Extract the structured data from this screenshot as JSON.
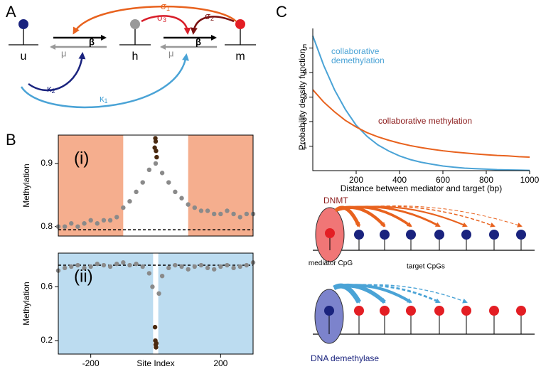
{
  "panel_labels": [
    "A",
    "B",
    "C"
  ],
  "diagram_a": {
    "states": [
      "u",
      "h",
      "m"
    ],
    "forward": [
      "β",
      "β"
    ],
    "backward": [
      "μ",
      "μ"
    ],
    "rates": [
      {
        "symbol": "σ",
        "sub": "1"
      },
      {
        "symbol": "σ",
        "sub": "2"
      },
      {
        "symbol": "σ",
        "sub": "3"
      },
      {
        "symbol": "κ",
        "sub": "1"
      },
      {
        "symbol": "κ",
        "sub": "2"
      }
    ]
  },
  "chart_data": [
    {
      "type": "scatter",
      "label": "(i)",
      "ylabel": "Methylation",
      "xlim": [
        -300,
        300
      ],
      "ylim": [
        0.785,
        0.945
      ],
      "yticks": [
        0.8,
        0.9
      ],
      "shaded": [
        [
          -300,
          -100
        ],
        [
          100,
          300
        ]
      ],
      "shade_color": "#f5ae8e",
      "reference_line": 0.795,
      "series": [
        {
          "color": "#8a8a8a",
          "x": [
            -300,
            -280,
            -260,
            -240,
            -220,
            -200,
            -180,
            -160,
            -140,
            -120,
            -100,
            -80,
            -60,
            -40,
            -20,
            0,
            20,
            40,
            60,
            80,
            100,
            120,
            140,
            160,
            180,
            200,
            220,
            240,
            260,
            280,
            300
          ],
          "values": [
            0.8,
            0.8,
            0.805,
            0.8,
            0.805,
            0.81,
            0.805,
            0.81,
            0.81,
            0.815,
            0.83,
            0.84,
            0.855,
            0.87,
            0.89,
            0.9,
            0.885,
            0.87,
            0.855,
            0.845,
            0.835,
            0.83,
            0.825,
            0.825,
            0.82,
            0.82,
            0.825,
            0.82,
            0.815,
            0.82,
            0.82
          ]
        },
        {
          "color": "#4a2a10",
          "x": [
            -3,
            -1,
            0,
            1,
            3
          ],
          "values": [
            0.925,
            0.94,
            0.935,
            0.92,
            0.91
          ]
        }
      ]
    },
    {
      "type": "scatter",
      "label": "(ii)",
      "ylabel": "Methylation",
      "xlabel": "Site Index",
      "xlim": [
        -300,
        300
      ],
      "ylim": [
        0.1,
        0.85
      ],
      "xticks": [
        -200,
        200
      ],
      "yticks": [
        0.2,
        0.6
      ],
      "shaded": [
        [
          -300,
          -8
        ],
        [
          8,
          300
        ]
      ],
      "shade_color": "#bcdcf0",
      "reference_line": 0.76,
      "series": [
        {
          "color": "#8a8a8a",
          "x": [
            -300,
            -280,
            -260,
            -240,
            -220,
            -200,
            -180,
            -160,
            -140,
            -120,
            -100,
            -80,
            -60,
            -40,
            -20,
            -10,
            10,
            20,
            40,
            60,
            80,
            100,
            120,
            140,
            160,
            180,
            200,
            220,
            240,
            260,
            280,
            300
          ],
          "values": [
            0.72,
            0.74,
            0.75,
            0.76,
            0.74,
            0.75,
            0.77,
            0.76,
            0.75,
            0.77,
            0.78,
            0.76,
            0.77,
            0.75,
            0.7,
            0.6,
            0.55,
            0.68,
            0.74,
            0.76,
            0.75,
            0.73,
            0.75,
            0.76,
            0.74,
            0.73,
            0.75,
            0.76,
            0.74,
            0.75,
            0.76,
            0.78
          ]
        },
        {
          "color": "#4a2a10",
          "x": [
            -2,
            -1,
            0,
            1,
            2
          ],
          "values": [
            0.3,
            0.2,
            0.17,
            0.15,
            0.18
          ]
        }
      ]
    },
    {
      "type": "line",
      "xlabel": "Distance between mediator and target (bp)",
      "ylabel": "Probability density function",
      "xlim": [
        0,
        1000
      ],
      "ylim": [
        0,
        5.8
      ],
      "xticks": [
        200,
        400,
        600,
        800,
        1000
      ],
      "yticks": [
        1,
        2,
        3,
        4,
        5
      ],
      "x": [
        0,
        50,
        100,
        150,
        200,
        250,
        300,
        350,
        400,
        450,
        500,
        550,
        600,
        650,
        700,
        750,
        800,
        850,
        900,
        950,
        1000
      ],
      "series": [
        {
          "name": "collaborative demethylation",
          "color": "#4aa3d6",
          "values": [
            5.5,
            4.3,
            3.3,
            2.5,
            1.85,
            1.4,
            1.05,
            0.8,
            0.6,
            0.45,
            0.34,
            0.26,
            0.19,
            0.14,
            0.1,
            0.08,
            0.06,
            0.04,
            0.03,
            0.02,
            0.01
          ]
        },
        {
          "name": "collaborative methylation",
          "color": "#e8621e",
          "values": [
            3.3,
            2.8,
            2.4,
            2.05,
            1.78,
            1.55,
            1.38,
            1.24,
            1.12,
            1.02,
            0.94,
            0.87,
            0.81,
            0.76,
            0.72,
            0.68,
            0.65,
            0.62,
            0.6,
            0.57,
            0.55
          ]
        }
      ]
    }
  ],
  "diagram_c": {
    "methylation": {
      "enzyme": "DNMT",
      "mediator": "mediator CpG",
      "targets": "target CpGs"
    },
    "demethylation": {
      "enzyme": "DNA demethylase"
    }
  }
}
